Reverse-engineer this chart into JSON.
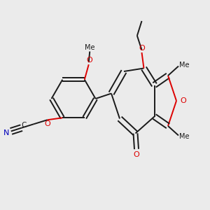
{
  "bg_color": "#ebebeb",
  "bond_color": "#1a1a1a",
  "o_color": "#dd0000",
  "n_color": "#0000bb",
  "lw": 1.4,
  "dbo": 0.013,
  "xlim": [
    0,
    1
  ],
  "ylim": [
    0,
    1
  ]
}
